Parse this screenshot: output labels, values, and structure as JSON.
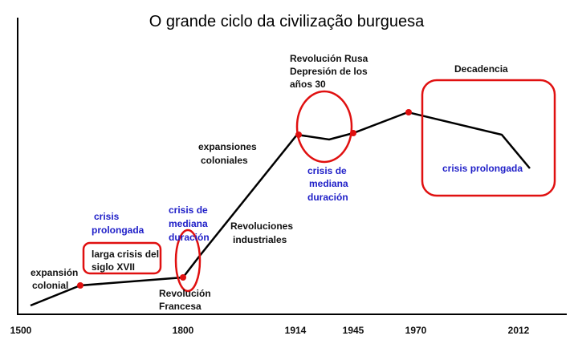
{
  "title": "O grande ciclo da civilização burguesa",
  "x_axis": {
    "labels": [
      "1500",
      "1800",
      "1914",
      "1945",
      "1970",
      "2012"
    ]
  },
  "annotations": [
    {
      "lines": [
        "expansión",
        "colonial"
      ]
    },
    {
      "lines": [
        "crisis",
        "prolongada"
      ]
    },
    {
      "lines": [
        "larga crisis del",
        "siglo XVII"
      ]
    },
    {
      "lines": [
        "crisis de",
        "mediana",
        "duración"
      ]
    },
    {
      "lines": [
        "Revolución",
        "Francesa"
      ]
    },
    {
      "lines": [
        "expansiones",
        "coloniales"
      ]
    },
    {
      "lines": [
        "Revoluciones",
        "industriales"
      ]
    },
    {
      "lines": [
        "Revolución Rusa",
        "Depresión de los",
        "años 30"
      ]
    },
    {
      "lines": [
        "crisis de",
        "mediana",
        "duración"
      ]
    },
    {
      "lines": [
        "Decadencia"
      ]
    },
    {
      "lines": [
        "crisis prolongada"
      ]
    }
  ]
}
